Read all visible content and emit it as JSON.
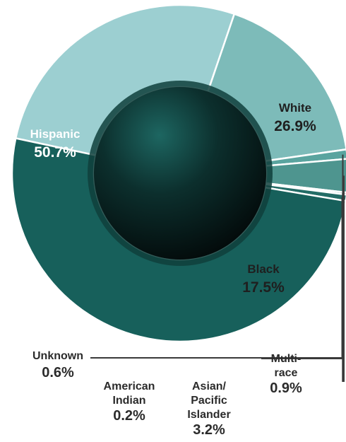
{
  "chart_data": {
    "type": "pie",
    "style": "donut",
    "title": "",
    "slices": [
      {
        "label": "Hispanic",
        "display": "50.7%",
        "value": 50.7,
        "color": "#17605b",
        "label_color": "#ffffff"
      },
      {
        "label": "White",
        "display": "26.9%",
        "value": 26.9,
        "color": "#9ccfd1",
        "label_color": "#1f1f1f"
      },
      {
        "label": "Black",
        "display": "17.5%",
        "value": 17.5,
        "color": "#7dbbb9",
        "label_color": "#1f1f1f"
      },
      {
        "label": "Multi-race",
        "display": "0.9%",
        "value": 0.9,
        "color": "#5aa49f",
        "label_color": "#2b2b2b"
      },
      {
        "label": "Asian/ Pacific Islander",
        "display": "3.2%",
        "value": 3.2,
        "color": "#4e958f",
        "label_color": "#2b2b2b"
      },
      {
        "label": "American Indian",
        "display": "0.2%",
        "value": 0.2,
        "color": "#2f7a74",
        "label_color": "#2b2b2b"
      },
      {
        "label": "Unknown",
        "display": "0.6%",
        "value": 0.6,
        "color": "#236c66",
        "label_color": "#2b2b2b"
      }
    ]
  }
}
